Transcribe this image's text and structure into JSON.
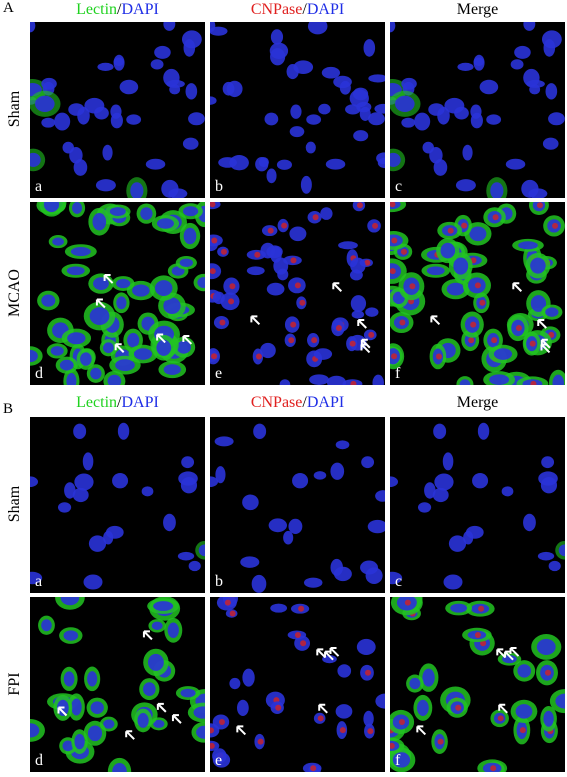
{
  "sections": [
    {
      "label": "A",
      "columns": [
        [
          {
            "text": "Lectin",
            "color": "#1fd21f"
          },
          {
            "text": "/"
          },
          {
            "text": "DAPI",
            "color": "#1f2ee6"
          }
        ],
        [
          {
            "text": "CNPase",
            "color": "#e0201f"
          },
          {
            "text": "/"
          },
          {
            "text": "DAPI",
            "color": "#1f2ee6"
          }
        ],
        [
          {
            "text": "Merge"
          }
        ]
      ],
      "rows": [
        {
          "label": "Sham",
          "panels": [
            "a",
            "b",
            "c"
          ]
        },
        {
          "label": "MCAO",
          "panels": [
            "d",
            "e",
            "f"
          ]
        }
      ]
    },
    {
      "label": "B",
      "columns": [
        [
          {
            "text": "Lectin",
            "color": "#1fd21f"
          },
          {
            "text": "/"
          },
          {
            "text": "DAPI",
            "color": "#1f2ee6"
          }
        ],
        [
          {
            "text": "CNPase",
            "color": "#e0201f"
          },
          {
            "text": "/"
          },
          {
            "text": "DAPI",
            "color": "#1f2ee6"
          }
        ],
        [
          {
            "text": "Merge"
          }
        ]
      ],
      "rows": [
        {
          "label": "Sham",
          "panels": [
            "a",
            "b",
            "c"
          ]
        },
        {
          "label": "FPI",
          "panels": [
            "d",
            "e",
            "f"
          ]
        }
      ]
    }
  ]
}
